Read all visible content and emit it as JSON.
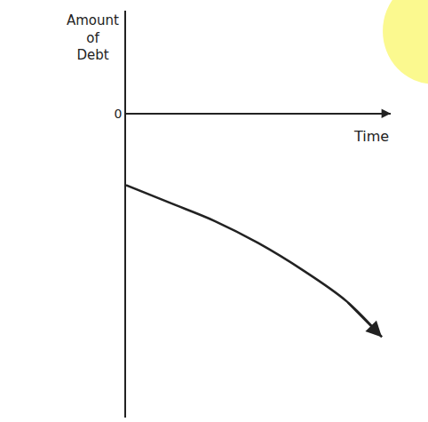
{
  "chart_data": {
    "type": "line",
    "xlabel": "Time",
    "ylabel": "Amount of Debt",
    "x": [
      0,
      1,
      2,
      3,
      4,
      5,
      5.8
    ],
    "values": [
      -1.6,
      -2.0,
      -2.4,
      -2.9,
      -3.5,
      -4.2,
      -5.0
    ],
    "color": "#222222",
    "xlim": [
      0,
      6
    ],
    "ylim": [
      -6.8,
      2.3
    ],
    "yticks": [
      0
    ],
    "tick_labels": "y",
    "grid": false
  }
}
